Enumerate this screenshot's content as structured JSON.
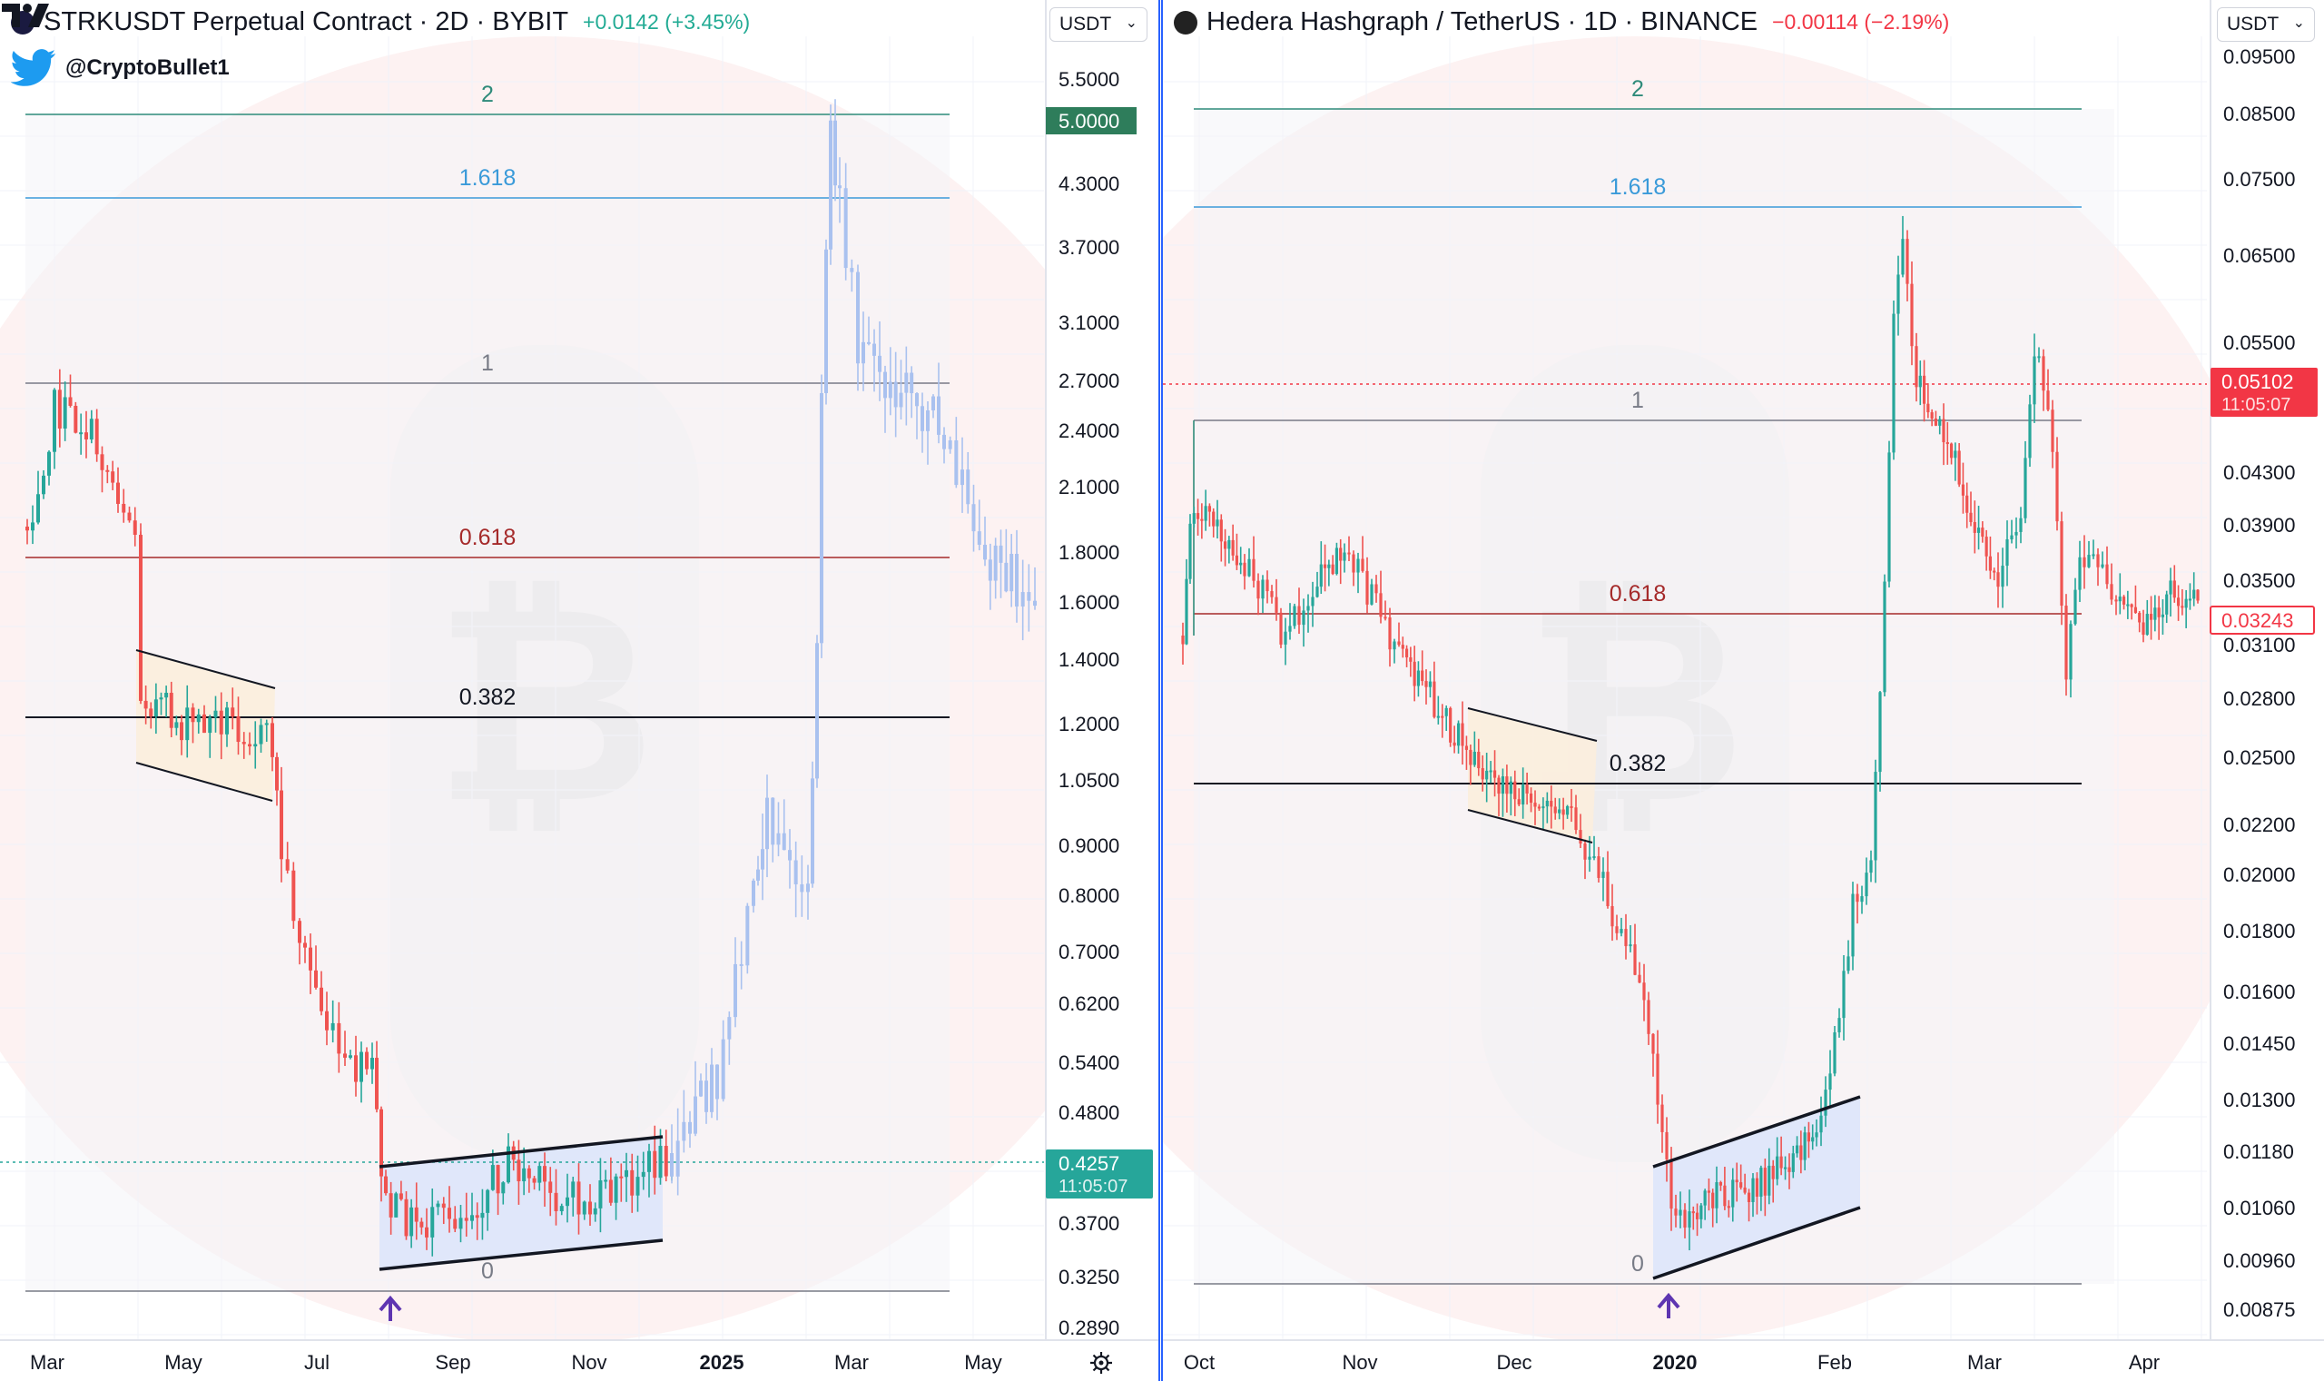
{
  "credit": {
    "handle": "@CryptoBullet1",
    "icon": "twitter-bird-icon"
  },
  "charts": [
    {
      "id": "left",
      "title": "STRKUSDT Perpetual Contract · 2D · BYBIT",
      "change": "+0.0142 (+3.45%)",
      "change_color": "#22ab94",
      "currency": "USDT",
      "price_labels": [
        "5.5000",
        "4.3000",
        "3.7000",
        "3.1000",
        "2.7000",
        "2.4000",
        "2.1000",
        "1.8000",
        "1.6000",
        "1.4000",
        "1.2000",
        "1.0500",
        "0.9000",
        "0.8000",
        "0.7000",
        "0.6200",
        "0.5400",
        "0.4800",
        "0.3700",
        "0.3250",
        "0.2890"
      ],
      "time_labels": [
        "Mar",
        "May",
        "Jul",
        "Sep",
        "Nov",
        "2025",
        "Mar",
        "May"
      ],
      "current_price": "0.4257",
      "countdown": "11:05:07",
      "marker_price": "5.0000",
      "fib_labels": [
        "2",
        "1.618",
        "1",
        "0.618",
        "0.382",
        "0"
      ]
    },
    {
      "id": "right",
      "title": "Hedera Hashgraph / TetherUS · 1D · BINANCE",
      "change": "−0.00114 (−2.19%)",
      "change_color": "#f23645",
      "currency": "USDT",
      "price_labels": [
        "0.09500",
        "0.08500",
        "0.07500",
        "0.06500",
        "0.05500",
        "0.04300",
        "0.03900",
        "0.03500",
        "0.03100",
        "0.02800",
        "0.02500",
        "0.02200",
        "0.02000",
        "0.01800",
        "0.01600",
        "0.01450",
        "0.01300",
        "0.01180",
        "0.01060",
        "0.00960",
        "0.00875"
      ],
      "time_labels": [
        "Oct",
        "Nov",
        "Dec",
        "2020",
        "Feb",
        "Mar",
        "Apr"
      ],
      "current_price": "0.05102",
      "countdown": "11:05:07",
      "marker_price": "0.03243",
      "fib_labels": [
        "2",
        "1.618",
        "1",
        "0.618",
        "0.382",
        "0"
      ]
    }
  ],
  "chart_data": [
    {
      "type": "candlestick",
      "title": "STRKUSDT Perpetual Contract · 2D · BYBIT",
      "x_ticks": [
        "Mar",
        "May",
        "Jul",
        "Sep",
        "Nov",
        "2025",
        "Mar",
        "May"
      ],
      "y_scale": "log",
      "y_ticks": [
        5.5,
        4.3,
        3.7,
        3.1,
        2.7,
        2.4,
        2.1,
        1.8,
        1.6,
        1.4,
        1.2,
        1.05,
        0.9,
        0.8,
        0.7,
        0.62,
        0.54,
        0.48,
        0.37,
        0.325,
        0.289
      ],
      "fib_levels": {
        "0": 0.296,
        "0.382": 1.22,
        "0.618": 1.77,
        "1": 2.7,
        "1.618": 4.4,
        "2": 5.3
      },
      "current_price": 0.4257,
      "arrow_label_price": 5.0,
      "price_path_anchors": [
        {
          "t": "Mar",
          "price": 2.0
        },
        {
          "t": "Mar",
          "price": 2.5
        },
        {
          "t": "Apr",
          "price": 1.8
        },
        {
          "t": "Apr",
          "price": 1.35
        },
        {
          "t": "May",
          "price": 1.3
        },
        {
          "t": "Jun",
          "price": 1.15
        },
        {
          "t": "Jun",
          "price": 0.75
        },
        {
          "t": "Jul",
          "price": 0.55
        },
        {
          "t": "Aug",
          "price": 0.35
        },
        {
          "t": "Sep",
          "price": 0.38
        },
        {
          "t": "Oct",
          "price": 0.4
        },
        {
          "t": "Nov",
          "price": 0.38
        },
        {
          "t": "Dec",
          "price": 0.45
        },
        {
          "t": "2025",
          "price": 0.7
        },
        {
          "t": "Jan",
          "price": 0.85
        },
        {
          "t": "Feb",
          "price": 2.6
        },
        {
          "t": "Feb",
          "price": 4.7
        },
        {
          "t": "Mar",
          "price": 2.5
        },
        {
          "t": "Apr",
          "price": 2.0
        },
        {
          "t": "May",
          "price": 1.6
        }
      ],
      "future_projection": "faded repeat of the HBAR 2019-2020 fractal"
    },
    {
      "type": "candlestick",
      "title": "Hedera Hashgraph / TetherUS · 1D · BINANCE",
      "x_ticks": [
        "Oct",
        "Nov",
        "Dec",
        "2020",
        "Feb",
        "Mar",
        "Apr"
      ],
      "y_scale": "log",
      "y_ticks": [
        0.095,
        0.085,
        0.075,
        0.065,
        0.055,
        0.043,
        0.039,
        0.035,
        0.031,
        0.028,
        0.025,
        0.022,
        0.02,
        0.018,
        0.016,
        0.0145,
        0.013,
        0.0118,
        0.0106,
        0.0096,
        0.00875
      ],
      "fib_levels": {
        "0": 0.00922,
        "0.382": 0.0232,
        "0.618": 0.0325,
        "1": 0.0495,
        "1.618": 0.071,
        "2": 0.0868
      },
      "current_price": 0.05102,
      "marker_price": 0.03243,
      "price_path_anchors": [
        {
          "t": "Oct",
          "price": 0.031
        },
        {
          "t": "Oct",
          "price": 0.038
        },
        {
          "t": "Nov",
          "price": 0.033
        },
        {
          "t": "Nov",
          "price": 0.036
        },
        {
          "t": "Dec",
          "price": 0.025
        },
        {
          "t": "Dec",
          "price": 0.021
        },
        {
          "t": "Dec",
          "price": 0.016
        },
        {
          "t": "2020",
          "price": 0.0105
        },
        {
          "t": "Jan",
          "price": 0.0115
        },
        {
          "t": "Feb",
          "price": 0.022
        },
        {
          "t": "Feb",
          "price": 0.065
        },
        {
          "t": "Feb",
          "price": 0.045
        },
        {
          "t": "Mar",
          "price": 0.063
        },
        {
          "t": "Mar",
          "price": 0.025
        },
        {
          "t": "Mar",
          "price": 0.038
        },
        {
          "t": "Apr",
          "price": 0.033
        }
      ]
    }
  ]
}
